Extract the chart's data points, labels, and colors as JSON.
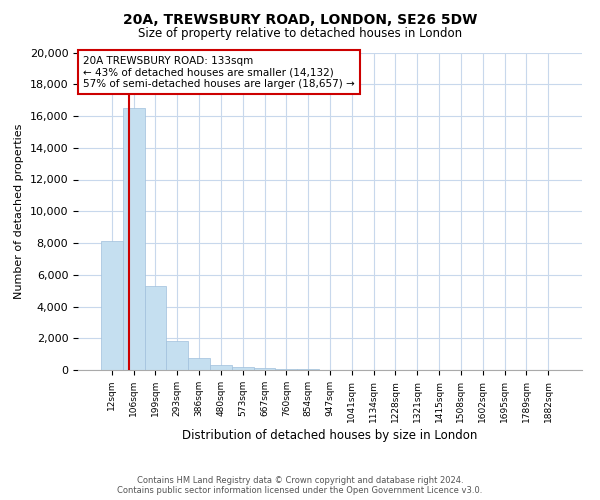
{
  "title": "20A, TREWSBURY ROAD, LONDON, SE26 5DW",
  "subtitle": "Size of property relative to detached houses in London",
  "xlabel": "Distribution of detached houses by size in London",
  "ylabel": "Number of detached properties",
  "categories": [
    "12sqm",
    "106sqm",
    "199sqm",
    "293sqm",
    "386sqm",
    "480sqm",
    "573sqm",
    "667sqm",
    "760sqm",
    "854sqm",
    "947sqm",
    "1041sqm",
    "1134sqm",
    "1228sqm",
    "1321sqm",
    "1415sqm",
    "1508sqm",
    "1602sqm",
    "1695sqm",
    "1789sqm",
    "1882sqm"
  ],
  "bar_values": [
    8100,
    16500,
    5300,
    1800,
    750,
    320,
    200,
    120,
    80,
    50,
    0,
    0,
    0,
    0,
    0,
    0,
    0,
    0,
    0,
    0,
    0
  ],
  "bar_color": "#c5dff0",
  "bar_edge_color": "#a0c0dc",
  "vline_color": "#cc0000",
  "annotation_text_line1": "20A TREWSBURY ROAD: 133sqm",
  "annotation_text_line2": "← 43% of detached houses are smaller (14,132)",
  "annotation_text_line3": "57% of semi-detached houses are larger (18,657) →",
  "box_edge_color": "#cc0000",
  "ylim": [
    0,
    20000
  ],
  "yticks": [
    0,
    2000,
    4000,
    6000,
    8000,
    10000,
    12000,
    14000,
    16000,
    18000,
    20000
  ],
  "footer_line1": "Contains HM Land Registry data © Crown copyright and database right 2024.",
  "footer_line2": "Contains public sector information licensed under the Open Government Licence v3.0.",
  "background_color": "#ffffff",
  "grid_color": "#c8d8ec"
}
